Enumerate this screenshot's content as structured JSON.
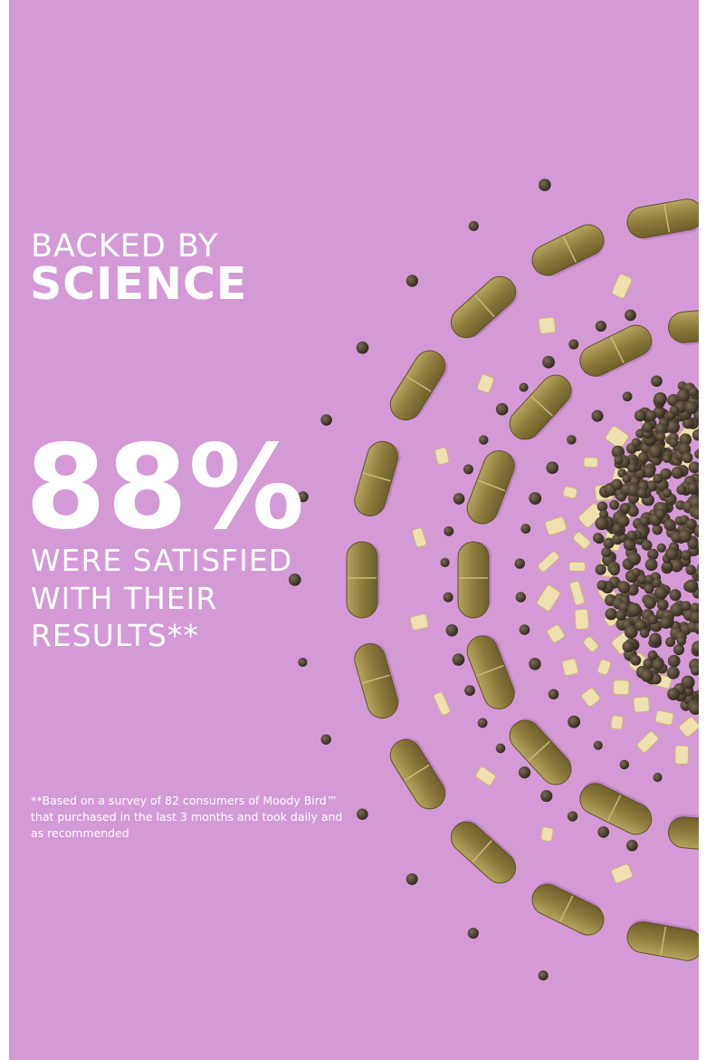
{
  "header": {
    "line1": "BACKED BY",
    "line2": "SCIENCE"
  },
  "stat": {
    "value": "88%",
    "lines": [
      "WERE SATISFIED",
      "WITH THEIR",
      "RESULTS**"
    ]
  },
  "footnote": {
    "lines": [
      "**Based on a survey of 82 consumers of Moody Bird™",
      "that purchased in the last 3 months and took daily and",
      "as recommended"
    ]
  }
}
